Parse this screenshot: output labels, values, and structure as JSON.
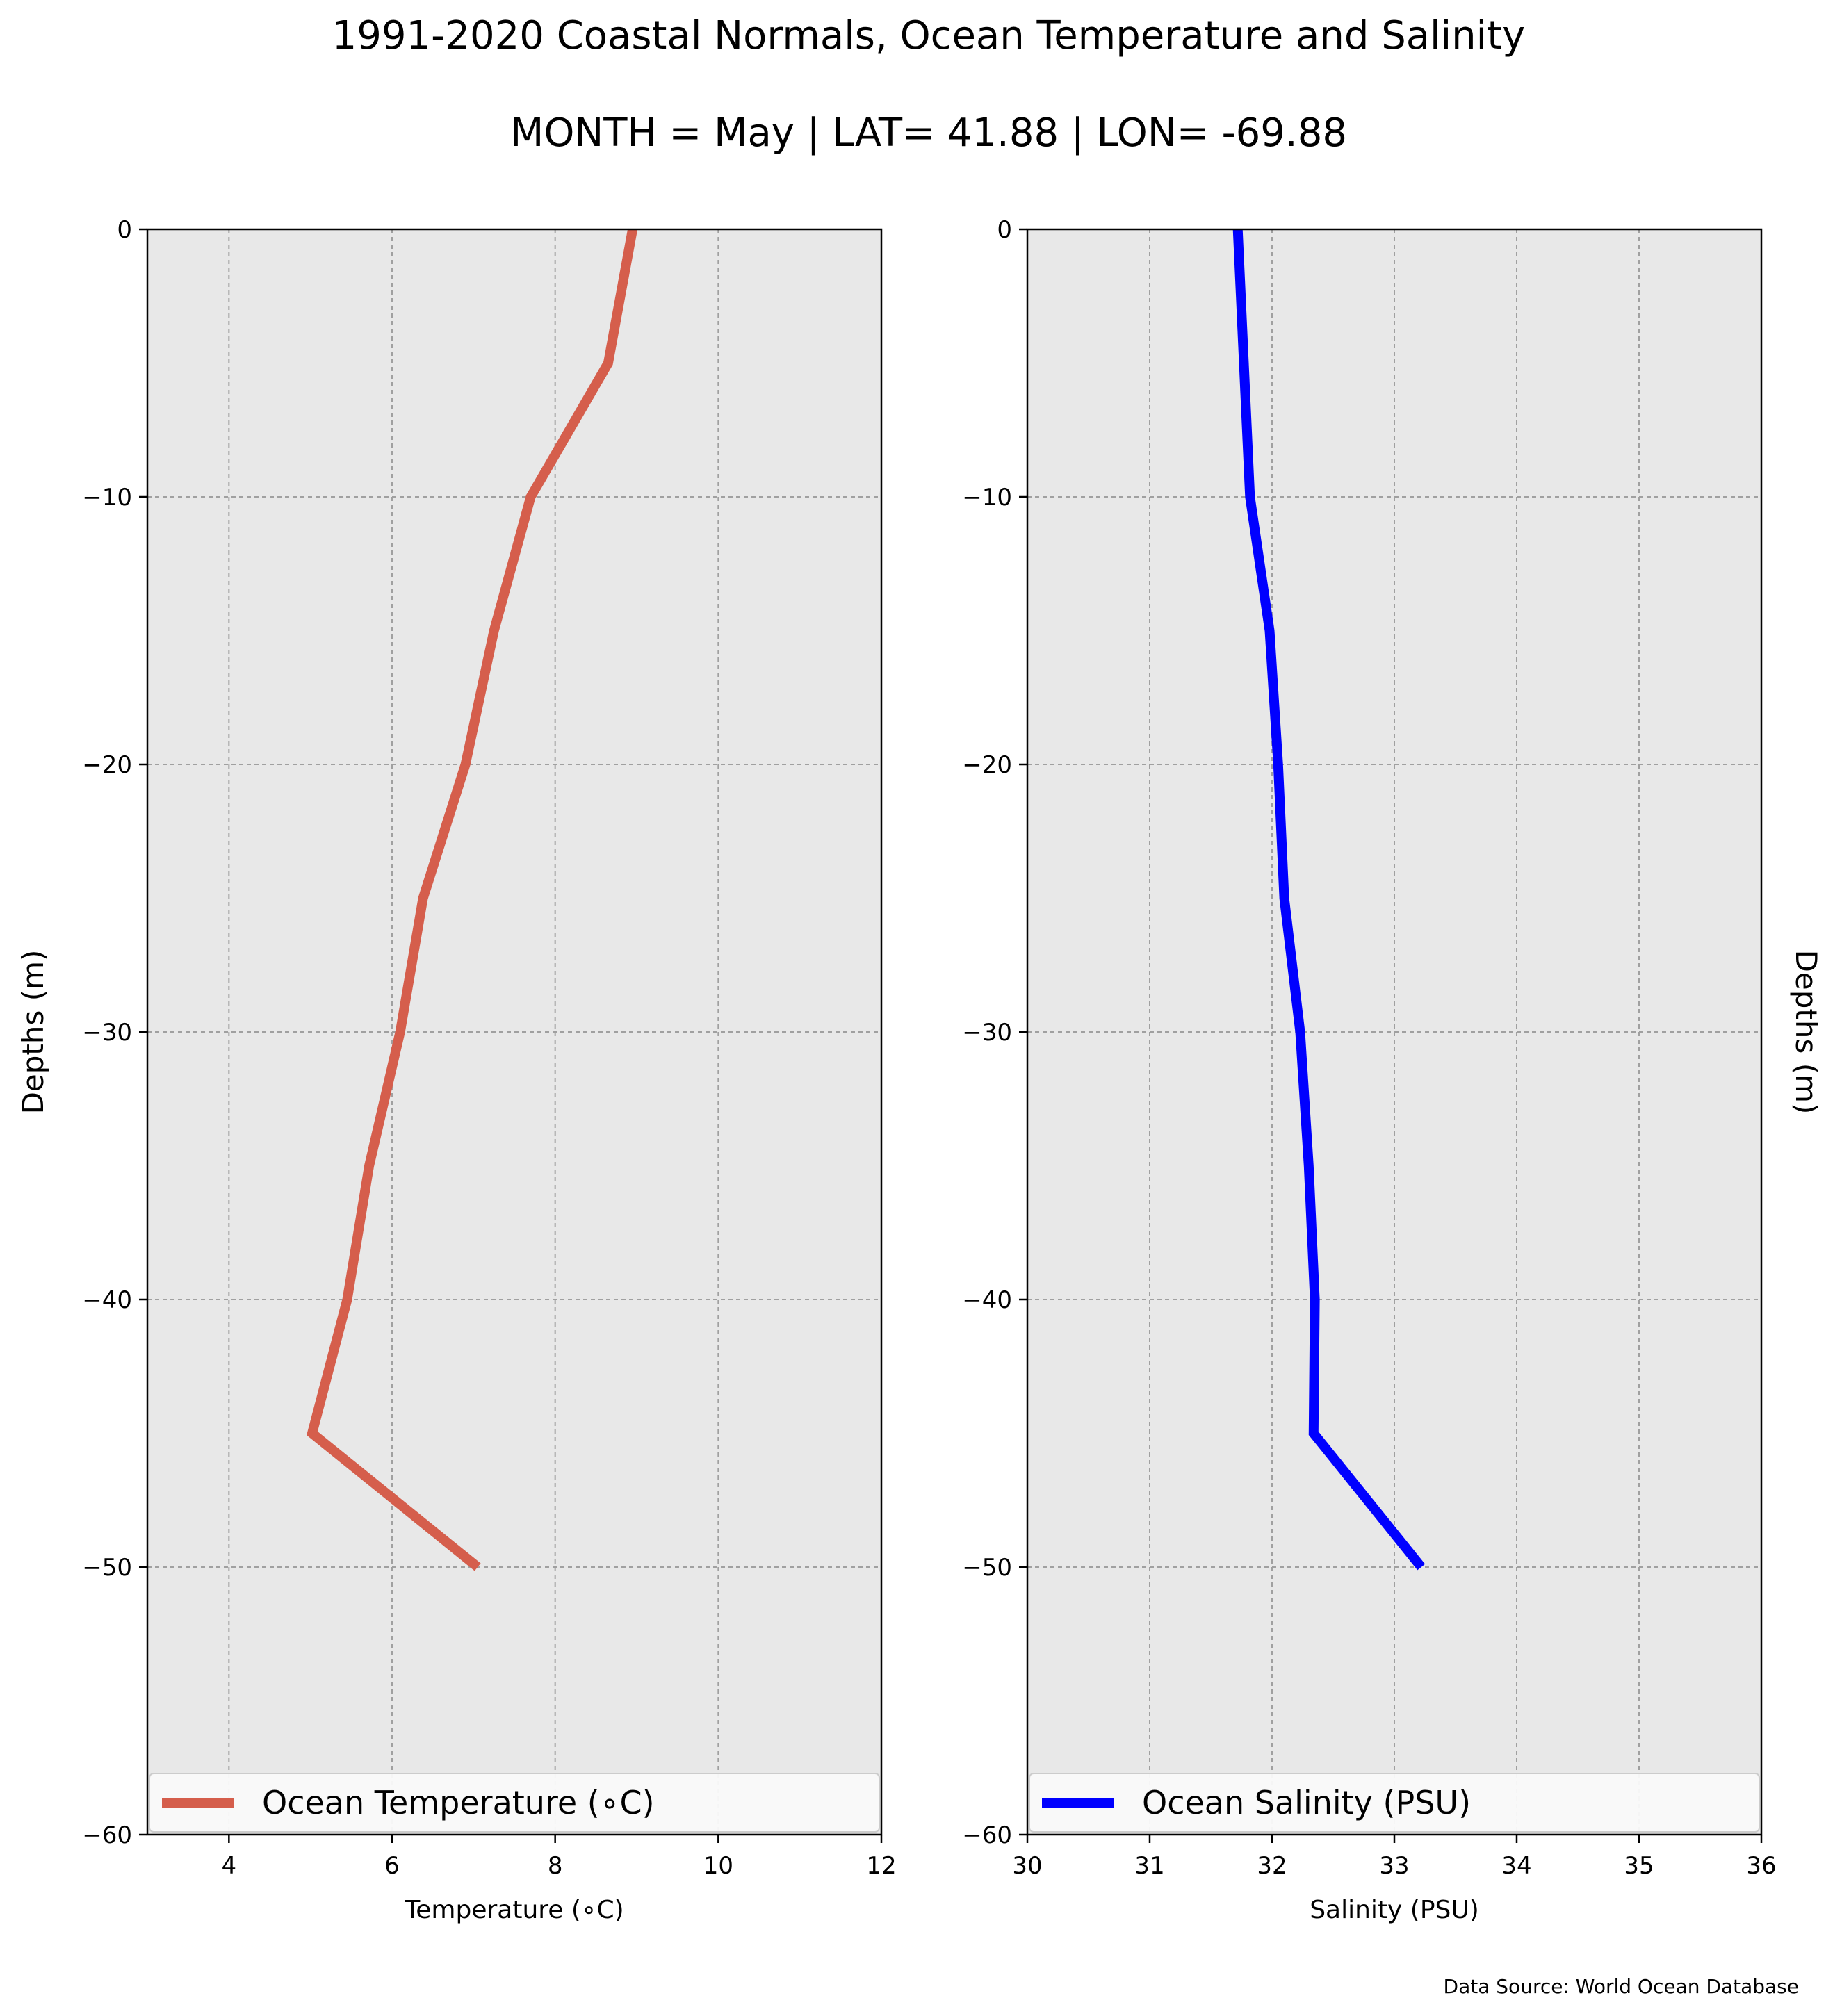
{
  "figure": {
    "title": "1991-2020 Coastal Normals, Ocean Temperature and Salinity",
    "subtitle": "MONTH = May | LAT= 41.88 | LON= -69.88",
    "source_note": "Data Source: World Ocean Database"
  },
  "chart_data": [
    {
      "type": "line",
      "xlabel": "Temperature (∘C)",
      "ylabel": "Depths (m)",
      "xlim": [
        3,
        12
      ],
      "ylim": [
        -60,
        0
      ],
      "xticks": [
        4,
        6,
        8,
        10,
        12
      ],
      "yticks": [
        0,
        -10,
        -20,
        -30,
        -40,
        -50,
        -60
      ],
      "grid": true,
      "legend_position": "lower-center",
      "background": "#e8e8e8",
      "series": [
        {
          "name": "Ocean Temperature (∘C)",
          "color": "#d55e4c",
          "points": [
            {
              "x": 8.95,
              "y": 0
            },
            {
              "x": 8.65,
              "y": -5
            },
            {
              "x": 7.7,
              "y": -10
            },
            {
              "x": 7.25,
              "y": -15
            },
            {
              "x": 6.9,
              "y": -20
            },
            {
              "x": 6.38,
              "y": -25
            },
            {
              "x": 6.1,
              "y": -30
            },
            {
              "x": 5.72,
              "y": -35
            },
            {
              "x": 5.45,
              "y": -40
            },
            {
              "x": 5.02,
              "y": -45
            },
            {
              "x": 7.05,
              "y": -50
            }
          ]
        }
      ]
    },
    {
      "type": "line",
      "xlabel": "Salinity (PSU)",
      "ylabel": "Depths (m)",
      "xlim": [
        30,
        36
      ],
      "ylim": [
        -60,
        0
      ],
      "xticks": [
        30,
        31,
        32,
        33,
        34,
        35,
        36
      ],
      "yticks": [
        0,
        -10,
        -20,
        -30,
        -40,
        -50,
        -60
      ],
      "grid": true,
      "legend_position": "lower-center",
      "background": "#e8e8e8",
      "series": [
        {
          "name": "Ocean Salinity (PSU)",
          "color": "#0000ff",
          "points": [
            {
              "x": 31.72,
              "y": 0
            },
            {
              "x": 31.77,
              "y": -5
            },
            {
              "x": 31.82,
              "y": -10
            },
            {
              "x": 31.98,
              "y": -15
            },
            {
              "x": 32.05,
              "y": -20
            },
            {
              "x": 32.1,
              "y": -25
            },
            {
              "x": 32.23,
              "y": -30
            },
            {
              "x": 32.3,
              "y": -35
            },
            {
              "x": 32.35,
              "y": -40
            },
            {
              "x": 32.34,
              "y": -45
            },
            {
              "x": 33.22,
              "y": -50
            }
          ]
        }
      ]
    }
  ]
}
